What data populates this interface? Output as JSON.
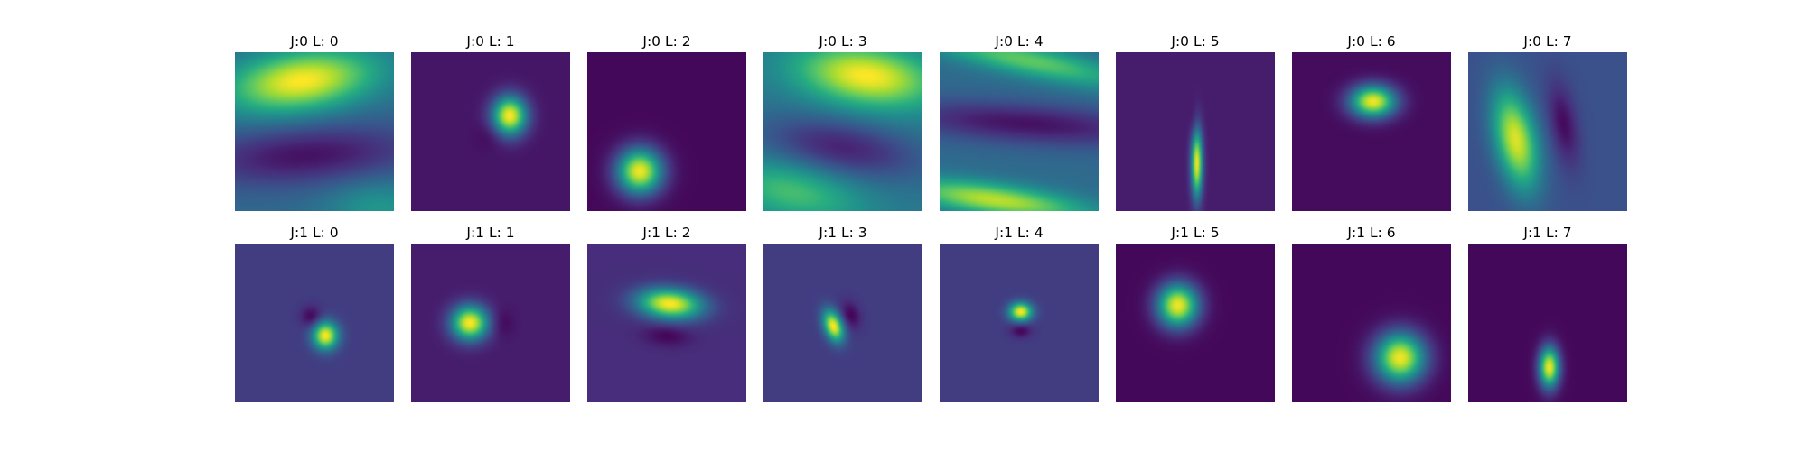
{
  "chart_data": {
    "type": "heatmap",
    "grid": {
      "rows": 2,
      "cols": 8
    },
    "colormap": "viridis",
    "axes": "off",
    "panels": [
      {
        "title": "J:0 L: 0",
        "J": 0,
        "L": 0,
        "background": 0.35,
        "blobs": [
          {
            "cx": 0.42,
            "cy": 0.18,
            "sx": 0.32,
            "sy": 0.13,
            "rot": -8,
            "amp": 0.65
          },
          {
            "cx": 0.45,
            "cy": 0.65,
            "sx": 0.5,
            "sy": 0.13,
            "rot": -4,
            "amp": -0.3
          },
          {
            "cx": 0.9,
            "cy": 0.98,
            "sx": 0.22,
            "sy": 0.12,
            "rot": 0,
            "amp": 0.18
          }
        ]
      },
      {
        "title": "J:0 L: 1",
        "J": 0,
        "L": 1,
        "background": 0.06,
        "blobs": [
          {
            "cx": 0.62,
            "cy": 0.4,
            "sx": 0.075,
            "sy": 0.085,
            "rot": 0,
            "amp": 0.94
          },
          {
            "cx": 0.5,
            "cy": 0.52,
            "sx": 0.06,
            "sy": 0.06,
            "rot": 0,
            "amp": -0.05
          }
        ]
      },
      {
        "title": "J:0 L: 2",
        "J": 0,
        "L": 2,
        "background": 0.02,
        "blobs": [
          {
            "cx": 0.33,
            "cy": 0.75,
            "sx": 0.1,
            "sy": 0.1,
            "rot": 0,
            "amp": 0.96
          }
        ]
      },
      {
        "title": "J:0 L: 3",
        "J": 0,
        "L": 3,
        "background": 0.4,
        "blobs": [
          {
            "cx": 0.65,
            "cy": 0.15,
            "sx": 0.3,
            "sy": 0.13,
            "rot": 8,
            "amp": 0.6
          },
          {
            "cx": 0.5,
            "cy": 0.6,
            "sx": 0.35,
            "sy": 0.12,
            "rot": 10,
            "amp": -0.3
          },
          {
            "cx": 0.18,
            "cy": 0.88,
            "sx": 0.3,
            "sy": 0.12,
            "rot": 12,
            "amp": 0.3
          }
        ]
      },
      {
        "title": "J:0 L: 4",
        "J": 0,
        "L": 4,
        "background": 0.35,
        "blobs": [
          {
            "cx": 0.55,
            "cy": 0.05,
            "sx": 0.45,
            "sy": 0.07,
            "rot": 12,
            "amp": 0.4
          },
          {
            "cx": 0.55,
            "cy": 0.45,
            "sx": 0.6,
            "sy": 0.09,
            "rot": 4,
            "amp": -0.3
          },
          {
            "cx": 0.35,
            "cy": 0.93,
            "sx": 0.4,
            "sy": 0.07,
            "rot": 8,
            "amp": 0.55
          }
        ]
      },
      {
        "title": "J:0 L: 5",
        "J": 0,
        "L": 5,
        "background": 0.08,
        "blobs": [
          {
            "cx": 0.51,
            "cy": 0.7,
            "sx": 0.025,
            "sy": 0.15,
            "rot": 0,
            "amp": 0.9
          },
          {
            "cx": 0.49,
            "cy": 0.45,
            "sx": 0.02,
            "sy": 0.08,
            "rot": 0,
            "amp": -0.06
          }
        ]
      },
      {
        "title": "J:0 L: 6",
        "J": 0,
        "L": 6,
        "background": 0.03,
        "blobs": [
          {
            "cx": 0.51,
            "cy": 0.31,
            "sx": 0.1,
            "sy": 0.07,
            "rot": 0,
            "amp": 0.95
          }
        ]
      },
      {
        "title": "J:0 L: 7",
        "J": 0,
        "L": 7,
        "background": 0.25,
        "blobs": [
          {
            "cx": 0.3,
            "cy": 0.55,
            "sx": 0.09,
            "sy": 0.22,
            "rot": -12,
            "amp": 0.7
          },
          {
            "cx": 0.6,
            "cy": 0.45,
            "sx": 0.06,
            "sy": 0.18,
            "rot": -10,
            "amp": -0.22
          }
        ]
      },
      {
        "title": "J:1 L: 0",
        "J": 1,
        "L": 0,
        "background": 0.18,
        "blobs": [
          {
            "cx": 0.57,
            "cy": 0.58,
            "sx": 0.055,
            "sy": 0.06,
            "rot": 0,
            "amp": 0.82
          },
          {
            "cx": 0.48,
            "cy": 0.46,
            "sx": 0.045,
            "sy": 0.045,
            "rot": 0,
            "amp": -0.17
          }
        ]
      },
      {
        "title": "J:1 L: 1",
        "J": 1,
        "L": 1,
        "background": 0.08,
        "blobs": [
          {
            "cx": 0.37,
            "cy": 0.5,
            "sx": 0.08,
            "sy": 0.075,
            "rot": 0,
            "amp": 0.92
          },
          {
            "cx": 0.57,
            "cy": 0.5,
            "sx": 0.05,
            "sy": 0.06,
            "rot": 0,
            "amp": -0.07
          }
        ]
      },
      {
        "title": "J:1 L: 2",
        "J": 1,
        "L": 2,
        "background": 0.13,
        "blobs": [
          {
            "cx": 0.52,
            "cy": 0.38,
            "sx": 0.14,
            "sy": 0.065,
            "rot": 5,
            "amp": 0.87
          },
          {
            "cx": 0.5,
            "cy": 0.58,
            "sx": 0.1,
            "sy": 0.045,
            "rot": 5,
            "amp": -0.12
          }
        ]
      },
      {
        "title": "J:1 L: 3",
        "J": 1,
        "L": 3,
        "background": 0.18,
        "blobs": [
          {
            "cx": 0.44,
            "cy": 0.52,
            "sx": 0.04,
            "sy": 0.07,
            "rot": -20,
            "amp": 0.82
          },
          {
            "cx": 0.55,
            "cy": 0.45,
            "sx": 0.04,
            "sy": 0.06,
            "rot": -20,
            "amp": -0.17
          }
        ]
      },
      {
        "title": "J:1 L: 4",
        "J": 1,
        "L": 4,
        "background": 0.18,
        "blobs": [
          {
            "cx": 0.51,
            "cy": 0.43,
            "sx": 0.05,
            "sy": 0.04,
            "rot": 0,
            "amp": 0.82
          },
          {
            "cx": 0.51,
            "cy": 0.55,
            "sx": 0.045,
            "sy": 0.03,
            "rot": 0,
            "amp": -0.17
          }
        ]
      },
      {
        "title": "J:1 L: 5",
        "J": 1,
        "L": 5,
        "background": 0.02,
        "blobs": [
          {
            "cx": 0.39,
            "cy": 0.39,
            "sx": 0.09,
            "sy": 0.095,
            "rot": 0,
            "amp": 0.96
          }
        ]
      },
      {
        "title": "J:1 L: 6",
        "J": 1,
        "L": 6,
        "background": 0.02,
        "blobs": [
          {
            "cx": 0.68,
            "cy": 0.72,
            "sx": 0.11,
            "sy": 0.11,
            "rot": 0,
            "amp": 0.96
          }
        ]
      },
      {
        "title": "J:1 L: 7",
        "J": 1,
        "L": 7,
        "background": 0.02,
        "blobs": [
          {
            "cx": 0.51,
            "cy": 0.78,
            "sx": 0.045,
            "sy": 0.09,
            "rot": 0,
            "amp": 0.96
          }
        ]
      }
    ]
  }
}
